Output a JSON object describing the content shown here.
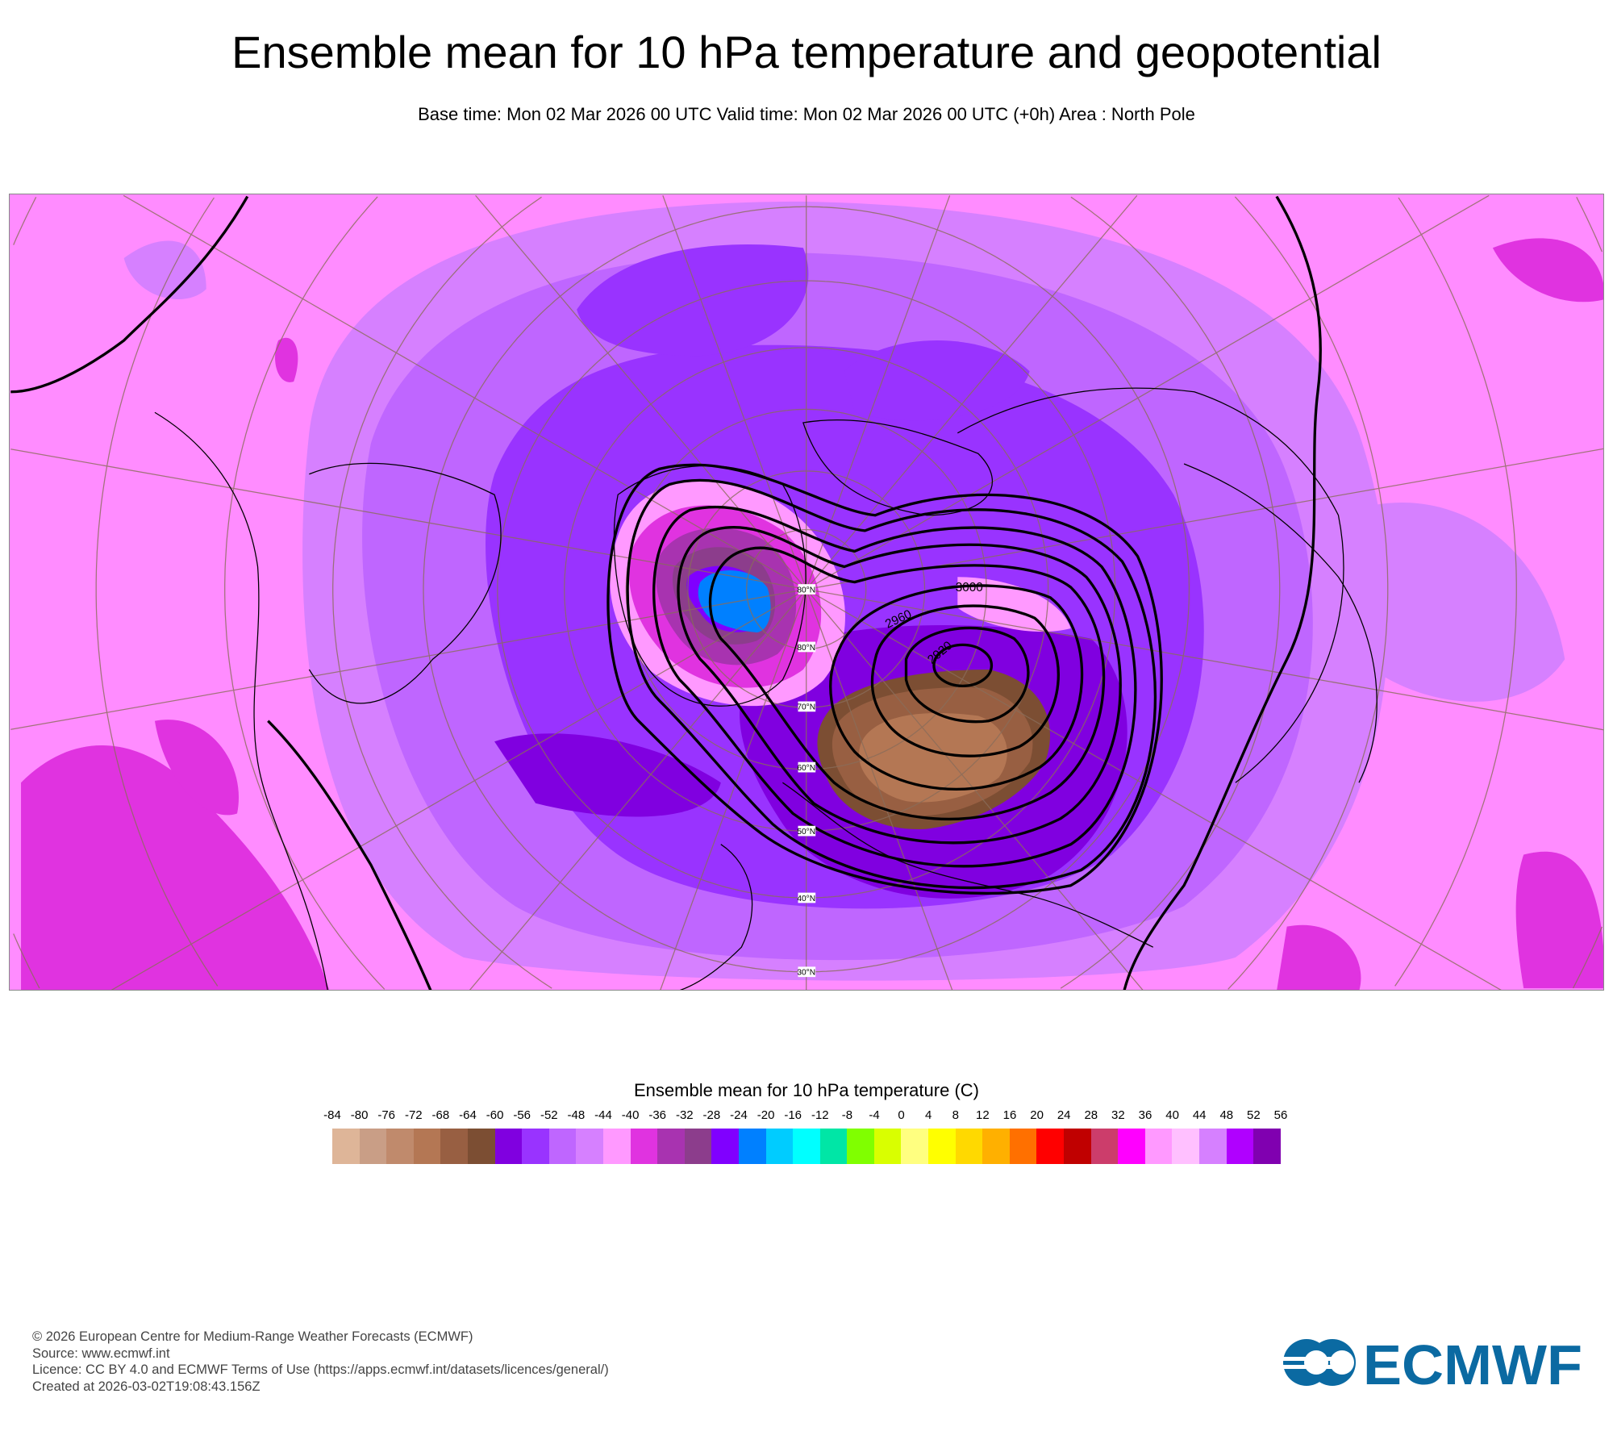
{
  "header": {
    "title": "Ensemble mean for 10 hPa temperature and geopotential",
    "subtitle": "Base time: Mon 02 Mar 2026 00 UTC Valid time: Mon 02 Mar 2026 00 UTC (+0h) Area : North Pole"
  },
  "map": {
    "latitude_labels": [
      "80°N",
      "80°N",
      "70°N",
      "60°N",
      "50°N",
      "40°N",
      "30°N"
    ],
    "contour_labels": [
      "3000",
      "2960",
      "2920"
    ]
  },
  "legend": {
    "title": "Ensemble mean for 10 hPa temperature (C)",
    "labels": [
      "-84",
      "-80",
      "-76",
      "-72",
      "-68",
      "-64",
      "-60",
      "-56",
      "-52",
      "-48",
      "-44",
      "-40",
      "-36",
      "-32",
      "-28",
      "-24",
      "-20",
      "-16",
      "-12",
      "-8",
      "-4",
      "0",
      "4",
      "8",
      "12",
      "16",
      "20",
      "24",
      "28",
      "32",
      "36",
      "40",
      "44",
      "48",
      "52",
      "56"
    ],
    "colors": [
      "#deb598",
      "#c99e86",
      "#c08a6c",
      "#b47754",
      "#985f42",
      "#7c4e33",
      "#8000e0",
      "#9933ff",
      "#bf66ff",
      "#d680ff",
      "#ff99ff",
      "#e033e0",
      "#a833b0",
      "#8c3d8c",
      "#8000ff",
      "#0080ff",
      "#00ccff",
      "#00ffff",
      "#00e6a6",
      "#80ff00",
      "#d9ff00",
      "#ffff80",
      "#ffff00",
      "#ffd900",
      "#ffb000",
      "#ff7000",
      "#ff0000",
      "#c00000",
      "#cc3d6b",
      "#ff00ff",
      "#ff99ff",
      "#ffc0ff",
      "#d680ff",
      "#b000ff",
      "#8000b0"
    ]
  },
  "footer": {
    "copyright": "© 2026 European Centre for Medium-Range Weather Forecasts (ECMWF)",
    "source": "Source: www.ecmwf.int",
    "licence": "Licence: CC BY 4.0 and ECMWF Terms of Use (https://apps.ecmwf.int/datasets/licences/general/)",
    "created": "Created at 2026-03-02T19:08:43.156Z"
  },
  "logo": {
    "text": "ECMWF",
    "color": "#0b6aa2"
  }
}
